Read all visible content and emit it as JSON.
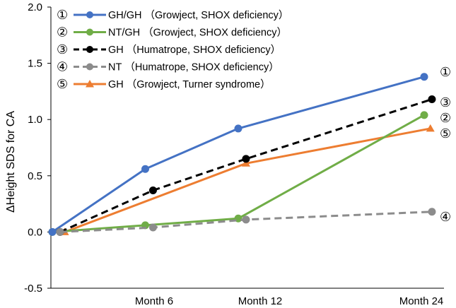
{
  "chart_data": {
    "type": "line",
    "title": "",
    "xlabel": "",
    "ylabel": "ΔHeight SDS for CA",
    "ylim": [
      -0.5,
      2.0
    ],
    "y_ticks": [
      "2.0",
      "1.5",
      "1.0",
      "0.5",
      "0.0",
      "-0.5"
    ],
    "x_ticks": [
      "Month 6",
      "Month 12",
      "Month 24"
    ],
    "series": [
      {
        "marker": "①",
        "name": "GH/GH",
        "detail": "（Growject, SHOX deficiency）",
        "color": "#4472c4",
        "dash": false,
        "shape": "circle",
        "x": [
          0,
          6,
          12,
          24
        ],
        "values": [
          0.0,
          0.56,
          0.92,
          1.38
        ]
      },
      {
        "marker": "②",
        "name": "NT/GH",
        "detail": "（Growject, SHOX deficiency）",
        "color": "#70ad47",
        "dash": false,
        "shape": "circle",
        "x": [
          0,
          6,
          12,
          24
        ],
        "values": [
          0.0,
          0.06,
          0.12,
          1.04
        ]
      },
      {
        "marker": "③",
        "name": "GH",
        "detail": "（Humatrope, SHOX deficiency）",
        "color": "#000000",
        "dash": true,
        "shape": "circle",
        "x": [
          0.5,
          6.5,
          12.5,
          24.5
        ],
        "values": [
          0.0,
          0.37,
          0.65,
          1.18
        ]
      },
      {
        "marker": "④",
        "name": "NT",
        "detail": "（Humatrope, SHOX deficiency）",
        "color": "#8c8c8c",
        "dash": true,
        "shape": "circle",
        "x": [
          0.5,
          6.5,
          12.5,
          24.5
        ],
        "values": [
          0.0,
          0.04,
          0.11,
          0.18
        ]
      },
      {
        "marker": "⑤",
        "name": "GH",
        "detail": "（Growject, Turner syndrome）",
        "color": "#ed7d31",
        "dash": false,
        "shape": "triangle",
        "x": [
          0.8,
          12.5,
          24.4
        ],
        "values": [
          0.0,
          0.61,
          0.92
        ]
      }
    ],
    "end_labels": [
      "①",
      "③",
      "②",
      "⑤",
      "④"
    ]
  }
}
